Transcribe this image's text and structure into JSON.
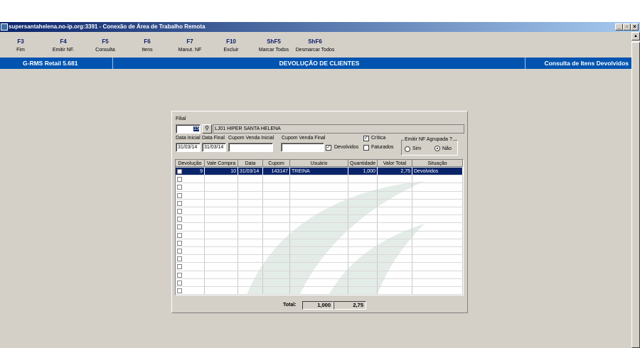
{
  "window": {
    "title": "supersantahelena.no-ip.org:3391 - Conexão de Área de Trabalho Remota"
  },
  "toolbar": [
    {
      "key": "F3",
      "label": "Fim"
    },
    {
      "key": "F4",
      "label": "Emitir NF."
    },
    {
      "key": "F5",
      "label": "Consulta"
    },
    {
      "key": "F6",
      "label": "Itens"
    },
    {
      "key": "F7",
      "label": "Manut. NF"
    },
    {
      "key": "F10",
      "label": "Excluir"
    },
    {
      "key": "ShF5",
      "label": "Marcar Todos"
    },
    {
      "key": "ShF6",
      "label": "Desmarcar Todos"
    }
  ],
  "header": {
    "app": "G-RMS Retail 5.681",
    "title": "DEVOLUÇÃO DE CLIENTES",
    "context": "Consulta de Itens Devolvidos"
  },
  "form": {
    "filial_label": "Filial",
    "filial_value": "15",
    "filial_name": "LJ01 HIPER SANTA HELENA",
    "data_inicial_label": "Data Inicial",
    "data_inicial": "31/03/14",
    "data_final_label": "Data Final",
    "data_final": "31/03/14",
    "cupom_ini_label": "Cupom Venda Inicial",
    "cupom_ini": "",
    "cupom_fim_label": "Cupom Venda Final",
    "cupom_fim": "",
    "devolvidos_label": "Devolvidos",
    "devolvidos": true,
    "critica_label": "Crítica",
    "critica": true,
    "faturados_label": "Faturados",
    "faturados": false,
    "agrupada_label": "Emitir NF Agrupada ?",
    "sim_label": "Sim",
    "nao_label": "Não",
    "agrupada": "Não"
  },
  "grid": {
    "columns": [
      "Devolução",
      "Vale Compra",
      "Data",
      "Cupom",
      "Usuário",
      "Quantidade",
      "Valor Total",
      "Situação"
    ],
    "rows": [
      [
        "9",
        "10",
        "31/03/14",
        "143147",
        "TREINA",
        "1,000",
        "2,75",
        "Devolvidos"
      ]
    ]
  },
  "totals": {
    "label": "Total:",
    "quantidade": "1,000",
    "valor": "2,75"
  },
  "colors": {
    "accent": "#0054b0",
    "selection": "#0a246a"
  }
}
